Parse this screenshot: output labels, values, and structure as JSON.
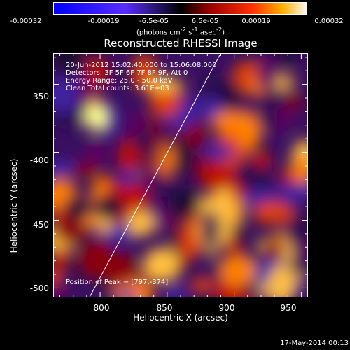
{
  "colorbar": {
    "ticks": [
      "-0.00032",
      "-0.00019",
      "-6.5e-05",
      "6.5e-05",
      "0.00019",
      "0.00032"
    ],
    "units_pre": "(photons cm",
    "units_exp1": "-2",
    "units_mid1": " s",
    "units_exp2": "-1",
    "units_mid2": " asec",
    "units_exp3": "-2",
    "units_post": ")"
  },
  "chart_data": {
    "type": "heatmap",
    "title": "Reconstructed RHESSI Image",
    "xlabel": "Heliocentric X (arcsec)",
    "ylabel": "Heliocentric Y (arcsec)",
    "xlim": [
      765,
      955
    ],
    "ylim": [
      -507,
      -327
    ],
    "x_ticks": [
      "800",
      "850",
      "900",
      "950"
    ],
    "y_ticks": [
      "-350",
      "-400",
      "-450",
      "-500"
    ],
    "colorbar_range": [
      -0.00032,
      0.00032
    ],
    "annotations": [
      "20-Jun-2012 15:02:40.000 to 15:06:08.000",
      "Detectors: 3F 5F 6F 7F 8F 9F, Att 0",
      "Energy Range: 25.0 - 50.0 keV",
      "Clean     Total counts: 3.61E+03"
    ],
    "peak_label": "Position of Peak = [797,-374]",
    "peak": [
      797,
      -374
    ],
    "limb_line": [
      [
        792,
        -507
      ],
      [
        890,
        -327
      ]
    ],
    "colors": {
      "background": "#000000",
      "axes": "#ffffff"
    }
  },
  "timestamp": "17-May-2014 00:13"
}
